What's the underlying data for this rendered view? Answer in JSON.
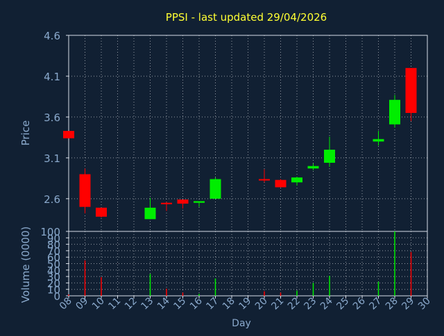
{
  "chart_data": [
    {
      "type": "candlestick",
      "title": "PPSI - last updated 29/04/2026",
      "ylabel": "Price",
      "ylim": [
        2.2,
        4.6
      ],
      "yticks": [
        2.6,
        3.1,
        3.6,
        4.1,
        4.6
      ],
      "ytick_labels": [
        "2.6",
        "3.1",
        "3.6",
        "4.1",
        "4.6"
      ],
      "xticks": [
        "08",
        "09",
        "10",
        "11",
        "12",
        "13",
        "14",
        "15",
        "16",
        "17",
        "18",
        "19",
        "20",
        "21",
        "22",
        "23",
        "24",
        "25",
        "26",
        "27",
        "28",
        "29",
        "30"
      ],
      "grid": true,
      "colors": {
        "up": "#00ee00",
        "down": "#ff0000",
        "title": "#ffff33",
        "axis_text": "#8aa9cc",
        "grid": "#ffffff",
        "background": "#112033"
      },
      "candles": [
        {
          "day": "08",
          "open": 3.43,
          "high": 3.43,
          "low": 3.34,
          "close": 3.34
        },
        {
          "day": "09",
          "open": 2.9,
          "high": 2.97,
          "low": 2.42,
          "close": 2.5
        },
        {
          "day": "10",
          "open": 2.49,
          "high": 2.49,
          "low": 2.37,
          "close": 2.38
        },
        {
          "day": "13",
          "open": 2.35,
          "high": 2.61,
          "low": 2.35,
          "close": 2.49
        },
        {
          "day": "14",
          "open": 2.55,
          "high": 2.56,
          "low": 2.45,
          "close": 2.54
        },
        {
          "day": "15",
          "open": 2.59,
          "high": 2.59,
          "low": 2.48,
          "close": 2.54
        },
        {
          "day": "16",
          "open": 2.55,
          "high": 2.56,
          "low": 2.5,
          "close": 2.57
        },
        {
          "day": "17",
          "open": 2.6,
          "high": 2.86,
          "low": 2.6,
          "close": 2.84
        },
        {
          "day": "20",
          "open": 2.84,
          "high": 2.96,
          "low": 2.8,
          "close": 2.83
        },
        {
          "day": "21",
          "open": 2.83,
          "high": 2.84,
          "low": 2.74,
          "close": 2.74
        },
        {
          "day": "22",
          "open": 2.8,
          "high": 2.87,
          "low": 2.76,
          "close": 2.86
        },
        {
          "day": "23",
          "open": 2.97,
          "high": 3.03,
          "low": 2.95,
          "close": 3.0
        },
        {
          "day": "24",
          "open": 3.04,
          "high": 3.36,
          "low": 2.99,
          "close": 3.2
        },
        {
          "day": "27",
          "open": 3.3,
          "high": 3.43,
          "low": 3.25,
          "close": 3.33
        },
        {
          "day": "28",
          "open": 3.51,
          "high": 3.87,
          "low": 3.47,
          "close": 3.81
        },
        {
          "day": "29",
          "open": 4.2,
          "high": 4.2,
          "low": 3.55,
          "close": 3.65
        }
      ]
    },
    {
      "type": "bar",
      "ylabel": "Volume (0000)",
      "xlabel": "Day",
      "ylim": [
        0,
        100
      ],
      "yticks": [
        0,
        10,
        20,
        30,
        40,
        50,
        60,
        70,
        80,
        90,
        100
      ],
      "ytick_labels": [
        "0",
        "10",
        "20",
        "30",
        "40",
        "50",
        "60",
        "70",
        "80",
        "90",
        "100"
      ],
      "xticks": [
        "08",
        "09",
        "10",
        "11",
        "12",
        "13",
        "14",
        "15",
        "16",
        "17",
        "18",
        "19",
        "20",
        "21",
        "22",
        "23",
        "24",
        "25",
        "26",
        "27",
        "28",
        "29",
        "30"
      ],
      "grid": true,
      "bars": [
        {
          "day": "08",
          "value": 2,
          "direction": "down"
        },
        {
          "day": "09",
          "value": 55,
          "direction": "down"
        },
        {
          "day": "10",
          "value": 29,
          "direction": "down"
        },
        {
          "day": "13",
          "value": 34,
          "direction": "up"
        },
        {
          "day": "14",
          "value": 11,
          "direction": "down"
        },
        {
          "day": "15",
          "value": 5,
          "direction": "down"
        },
        {
          "day": "16",
          "value": 3,
          "direction": "up"
        },
        {
          "day": "17",
          "value": 27,
          "direction": "up"
        },
        {
          "day": "20",
          "value": 7,
          "direction": "down"
        },
        {
          "day": "21",
          "value": 5,
          "direction": "down"
        },
        {
          "day": "22",
          "value": 8,
          "direction": "up"
        },
        {
          "day": "23",
          "value": 20,
          "direction": "up"
        },
        {
          "day": "24",
          "value": 31,
          "direction": "up"
        },
        {
          "day": "27",
          "value": 22,
          "direction": "up"
        },
        {
          "day": "28",
          "value": 100,
          "direction": "up"
        },
        {
          "day": "29",
          "value": 68,
          "direction": "down"
        }
      ]
    }
  ]
}
